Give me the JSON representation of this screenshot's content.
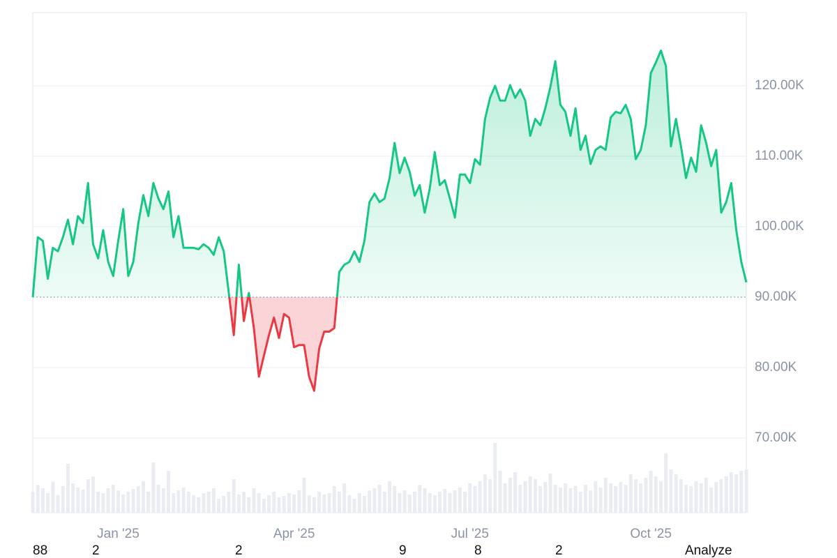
{
  "chart_data": {
    "type": "baseline-area",
    "categories": [
      null,
      null,
      null,
      null,
      null,
      null,
      null,
      null,
      null,
      null,
      null,
      null,
      null,
      null,
      null,
      null,
      null,
      "Jan '25",
      null,
      null,
      null,
      null,
      null,
      null,
      null,
      null,
      null,
      null,
      null,
      null,
      null,
      null,
      null,
      null,
      null,
      null,
      null,
      null,
      null,
      null,
      null,
      null,
      null,
      null,
      null,
      null,
      null,
      null,
      null,
      null,
      null,
      null,
      "Apr '25",
      null,
      null,
      null,
      null,
      null,
      null,
      null,
      null,
      null,
      null,
      null,
      null,
      null,
      null,
      null,
      null,
      null,
      null,
      null,
      null,
      null,
      null,
      null,
      null,
      null,
      null,
      null,
      null,
      null,
      null,
      null,
      null,
      null,
      null,
      "Jul '25",
      null,
      null,
      null,
      null,
      null,
      null,
      null,
      null,
      null,
      null,
      null,
      null,
      null,
      null,
      null,
      null,
      null,
      null,
      null,
      null,
      null,
      null,
      null,
      null,
      null,
      null,
      null,
      null,
      null,
      null,
      null,
      null,
      null,
      null,
      null,
      "Oct '25",
      null,
      null,
      null,
      null,
      null,
      null,
      null,
      null,
      null,
      null,
      null,
      null,
      null,
      null,
      null,
      null,
      null,
      null,
      null
    ],
    "values": [
      90000,
      98500,
      98000,
      92600,
      97000,
      96500,
      98500,
      101000,
      97500,
      101500,
      100500,
      106200,
      97500,
      95500,
      99500,
      95000,
      93000,
      98000,
      102500,
      93000,
      95000,
      100500,
      104500,
      101500,
      106200,
      104000,
      102500,
      105000,
      98500,
      101500,
      97000,
      97000,
      97000,
      96800,
      97500,
      97000,
      96000,
      98500,
      96500,
      90600,
      84600,
      94600,
      86600,
      90600,
      85600,
      78700,
      81700,
      84600,
      87100,
      84200,
      87600,
      87100,
      82900,
      83200,
      83200,
      78700,
      76700,
      82700,
      85100,
      85100,
      85600,
      93600,
      94600,
      95000,
      96500,
      95000,
      98000,
      103500,
      104700,
      103500,
      104000,
      106900,
      111900,
      107600,
      109800,
      107800,
      104400,
      105900,
      102000,
      105400,
      110600,
      105900,
      106600,
      104000,
      101300,
      107400,
      107400,
      106200,
      109600,
      108800,
      115300,
      118300,
      120000,
      117900,
      117900,
      120100,
      118300,
      119500,
      117900,
      112900,
      115300,
      114400,
      116800,
      119800,
      123500,
      117300,
      116300,
      112900,
      116800,
      110900,
      112900,
      108900,
      110900,
      111400,
      110900,
      115500,
      116300,
      116100,
      117300,
      115300,
      109600,
      110900,
      114400,
      121800,
      123300,
      125000,
      122800,
      111400,
      115300,
      111400,
      106900,
      109800,
      107800,
      114400,
      111900,
      108600,
      110900,
      102000,
      103500,
      106200,
      99500,
      95000,
      92100
    ],
    "volume": [
      30,
      40,
      35,
      28,
      45,
      25,
      38,
      70,
      42,
      36,
      33,
      48,
      52,
      30,
      28,
      35,
      40,
      32,
      26,
      30,
      34,
      38,
      45,
      30,
      72,
      40,
      35,
      60,
      28,
      32,
      36,
      30,
      25,
      22,
      28,
      30,
      35,
      20,
      24,
      30,
      48,
      26,
      30,
      22,
      35,
      28,
      20,
      25,
      30,
      22,
      24,
      28,
      26,
      32,
      50,
      25,
      22,
      30,
      26,
      28,
      38,
      30,
      42,
      25,
      20,
      28,
      24,
      32,
      35,
      40,
      30,
      45,
      38,
      28,
      32,
      26,
      30,
      40,
      35,
      28,
      25,
      30,
      34,
      28,
      32,
      36,
      30,
      42,
      38,
      45,
      55,
      48,
      100,
      60,
      42,
      50,
      58,
      40,
      45,
      52,
      48,
      38,
      44,
      56,
      40,
      36,
      42,
      35,
      38,
      30,
      40,
      32,
      45,
      36,
      50,
      42,
      38,
      44,
      40,
      55,
      48,
      42,
      50,
      60,
      52,
      45,
      85,
      62,
      55,
      48,
      40,
      38,
      45,
      42,
      50,
      36,
      44,
      48,
      52,
      58,
      55,
      60,
      62
    ],
    "volume_lim": [
      0,
      100
    ],
    "volume_color": "#e9edf2",
    "baseline": 90000,
    "color": "#16c784",
    "negative_color": "#ea3943",
    "ylim": [
      59400,
      130400
    ],
    "yticks": [
      {
        "value": 70000,
        "label": "70.00K"
      },
      {
        "value": 80000,
        "label": "80.00K"
      },
      {
        "value": 90000,
        "label": "90.00K"
      },
      {
        "value": 100000,
        "label": "100.00K"
      },
      {
        "value": 110000,
        "label": "110.00K"
      },
      {
        "value": 120000,
        "label": "120.00K"
      }
    ],
    "grid": true
  },
  "footer_labels": [
    "88",
    "2",
    "2",
    "9",
    "8",
    "2",
    "Analyze"
  ]
}
